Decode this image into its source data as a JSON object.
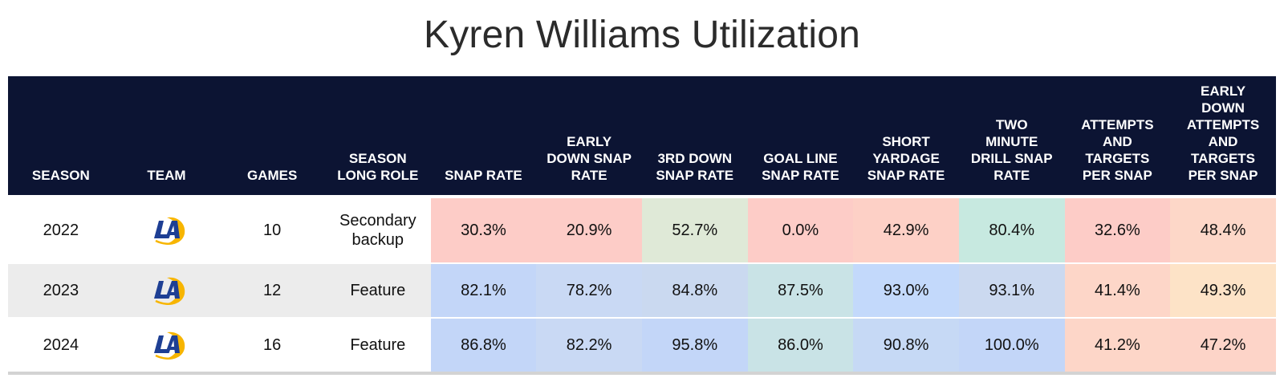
{
  "title": "Kyren Williams Utilization",
  "columns": [
    "SEASON",
    "TEAM",
    "GAMES",
    "SEASON\nLONG ROLE",
    "SNAP RATE",
    "EARLY\nDOWN SNAP\nRATE",
    "3RD DOWN\nSNAP RATE",
    "GOAL LINE\nSNAP RATE",
    "SHORT\nYARDAGE\nSNAP RATE",
    "TWO\nMINUTE\nDRILL SNAP\nRATE",
    "ATTEMPTS\nAND\nTARGETS\nPER SNAP",
    "EARLY\nDOWN\nATTEMPTS\nAND\nTARGETS\nPER SNAP"
  ],
  "team_logo_icon": "la-rams-logo-icon",
  "rows": [
    {
      "season": "2022",
      "team": "LA",
      "games": "10",
      "role": "Secondary\nbackup",
      "snap_rate": "30.3%",
      "early_down_snap_rate": "20.9%",
      "third_down_snap_rate": "52.7%",
      "goal_line_snap_rate": "0.0%",
      "short_yardage_snap_rate": "42.9%",
      "two_minute_drill_snap_rate": "80.4%",
      "attempts_targets_per_snap": "32.6%",
      "early_down_attempts_targets_per_snap": "48.4%"
    },
    {
      "season": "2023",
      "team": "LA",
      "games": "12",
      "role": "Feature",
      "snap_rate": "82.1%",
      "early_down_snap_rate": "78.2%",
      "third_down_snap_rate": "84.8%",
      "goal_line_snap_rate": "87.5%",
      "short_yardage_snap_rate": "93.0%",
      "two_minute_drill_snap_rate": "93.1%",
      "attempts_targets_per_snap": "41.4%",
      "early_down_attempts_targets_per_snap": "49.3%"
    },
    {
      "season": "2024",
      "team": "LA",
      "games": "16",
      "role": "Feature",
      "snap_rate": "86.8%",
      "early_down_snap_rate": "82.2%",
      "third_down_snap_rate": "95.8%",
      "goal_line_snap_rate": "86.0%",
      "short_yardage_snap_rate": "90.8%",
      "two_minute_drill_snap_rate": "100.0%",
      "attempts_targets_per_snap": "41.2%",
      "early_down_attempts_targets_per_snap": "47.2%"
    }
  ],
  "cell_colors": [
    [
      "#fdccc7",
      "#fdccc7",
      "#dfe9d7",
      "#fdccc7",
      "#fdd0c6",
      "#c7e9e0",
      "#fdccc7",
      "#fdd7c8"
    ],
    [
      "#c3d6f8",
      "#c9d9f4",
      "#cad9f0",
      "#c9e3e6",
      "#c3d9fb",
      "#cbd9f0",
      "#fdd6c8",
      "#fde3c7"
    ],
    [
      "#c3d6f8",
      "#c9d9f4",
      "#c3d6f8",
      "#c9e3e6",
      "#c6d9f5",
      "#c3d6f8",
      "#fdd6c8",
      "#fdd4c8"
    ]
  ],
  "colors": {
    "header_bg": "#0c1433",
    "header_text": "#ffffff",
    "row_alt_bg": "#ececec"
  }
}
